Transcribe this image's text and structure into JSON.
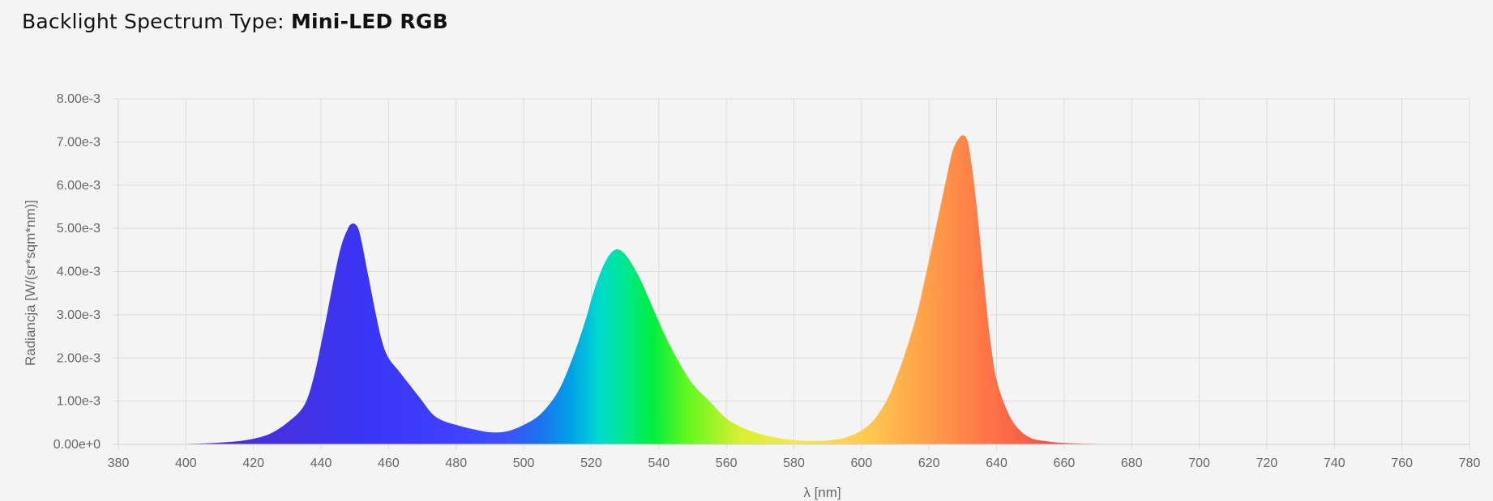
{
  "header": {
    "label": "Backlight Spectrum Type:",
    "value": "Mini-LED RGB"
  },
  "chart_data": {
    "type": "area",
    "xlabel": "λ [nm]",
    "ylabel": "Radiancja [W/(sr*sqm*nm)]",
    "xlim": [
      380,
      780
    ],
    "ylim": [
      0,
      0.008
    ],
    "x_ticks": [
      "380",
      "400",
      "420",
      "440",
      "460",
      "480",
      "500",
      "520",
      "540",
      "560",
      "580",
      "600",
      "620",
      "640",
      "660",
      "680",
      "700",
      "720",
      "740",
      "760",
      "780"
    ],
    "y_ticks": [
      "0.00e+0",
      "1.00e-3",
      "2.00e-3",
      "3.00e-3",
      "4.00e-3",
      "5.00e-3",
      "6.00e-3",
      "7.00e-3",
      "8.00e-3"
    ],
    "grid": true,
    "fill": "wavelength-colored spectrum",
    "series": [
      {
        "x": [
          380,
          390,
          400,
          405,
          410,
          415,
          420,
          425,
          430,
          435,
          438,
          441,
          444,
          446,
          448,
          449,
          450,
          451,
          452,
          454,
          456,
          458,
          460,
          463,
          466,
          470,
          473,
          476,
          480,
          485,
          490,
          495,
          500,
          505,
          510,
          514,
          518,
          521,
          524,
          527,
          530,
          534,
          538,
          542,
          546,
          550,
          555,
          560,
          565,
          570,
          575,
          580,
          585,
          590,
          595,
          600,
          604,
          608,
          612,
          616,
          619,
          622,
          625,
          627,
          629,
          630,
          631,
          632,
          634,
          636,
          638,
          640,
          643,
          646,
          650,
          655,
          660,
          670,
          680,
          700,
          720,
          740,
          760,
          780
        ],
        "y": [
          0.0,
          0.0,
          1e-05,
          2e-05,
          4e-05,
          7e-05,
          0.00013,
          0.00025,
          0.0005,
          0.0009,
          0.0016,
          0.0027,
          0.0039,
          0.0046,
          0.005,
          0.0051,
          0.0051,
          0.005,
          0.0047,
          0.0039,
          0.0031,
          0.0024,
          0.002,
          0.0017,
          0.0014,
          0.001,
          0.0007,
          0.00055,
          0.00045,
          0.00035,
          0.00028,
          0.0003,
          0.00045,
          0.0007,
          0.0012,
          0.0019,
          0.0028,
          0.0036,
          0.0042,
          0.0045,
          0.0044,
          0.0039,
          0.0032,
          0.0025,
          0.0019,
          0.0014,
          0.001,
          0.0006,
          0.00038,
          0.00024,
          0.00015,
          0.0001,
          8e-05,
          9e-05,
          0.00015,
          0.00032,
          0.0006,
          0.0011,
          0.0019,
          0.0029,
          0.0039,
          0.005,
          0.0061,
          0.0068,
          0.0071,
          0.00715,
          0.0071,
          0.0068,
          0.0056,
          0.004,
          0.0025,
          0.0015,
          0.0008,
          0.0004,
          0.00015,
          7e-05,
          3e-05,
          1e-05,
          0.0,
          0.0,
          0.0,
          0.0,
          0.0,
          0.0
        ]
      }
    ]
  }
}
